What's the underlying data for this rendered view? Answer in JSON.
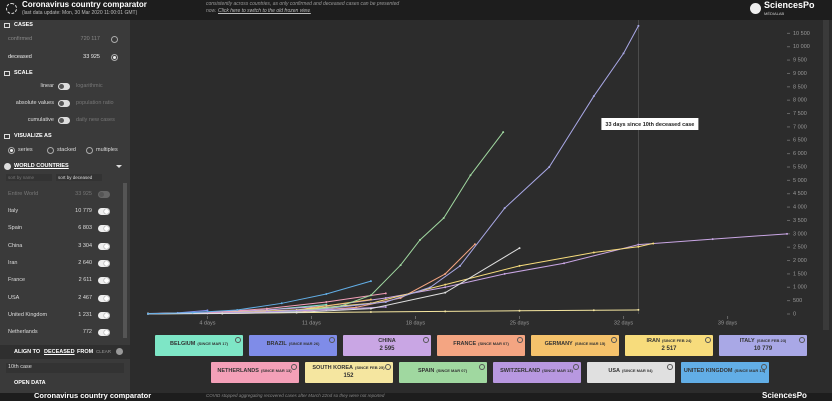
{
  "header": {
    "title": "Coronavirus country comparator",
    "subtitle": "(last data update: Mon, 30 Mar 2020 11:00:01 GMT)",
    "notice": "consistently across countries, as only confirmed and deceased cases can be presented",
    "notice_prefix": "now.",
    "notice_link": "Click here to switch to the old frozen view.",
    "logo": "SciencesPo",
    "logo_sub": "MÉDIALAB"
  },
  "sidebar": {
    "cases": {
      "title": "CASES",
      "selected": 1,
      "options": [
        {
          "label": "confirmed",
          "value": "720 117"
        },
        {
          "label": "deceased",
          "value": "33 925"
        }
      ]
    },
    "scale": {
      "title": "SCALE",
      "toggles": [
        {
          "on": "linear",
          "off": "logarithmic"
        },
        {
          "on": "absolute values",
          "off": "population ratio"
        },
        {
          "on": "cumulative",
          "off": "daily new cases"
        }
      ]
    },
    "visualize": {
      "title": "VISUALIZE AS",
      "selected": 0,
      "options": [
        "series",
        "stacked",
        "multiples"
      ]
    },
    "countries": {
      "title": "WORLD COUNTRIES",
      "sort": [
        "sort by name",
        "sort by deceased"
      ],
      "world": {
        "label": "Entire World",
        "value": "33 925"
      },
      "rows": [
        {
          "label": "Italy",
          "value": "10 779"
        },
        {
          "label": "Spain",
          "value": "6 803"
        },
        {
          "label": "China",
          "value": "3 304"
        },
        {
          "label": "Iran",
          "value": "2 640"
        },
        {
          "label": "France",
          "value": "2 611"
        },
        {
          "label": "USA",
          "value": "2 467"
        },
        {
          "label": "United Kingdom",
          "value": "1 231"
        },
        {
          "label": "Netherlands",
          "value": "772"
        }
      ]
    },
    "align": {
      "label": "ALIGN TO",
      "metric": "DECEASED",
      "from": "FROM",
      "clear": "CLEAR",
      "select": "10th case"
    },
    "open_data": "OPEN DATA"
  },
  "chart_data": {
    "type": "line",
    "xlim": [
      0,
      43
    ],
    "ylim": [
      0,
      11000
    ],
    "xticks": [
      {
        "value": 4,
        "label": "4 days"
      },
      {
        "value": 11,
        "label": "11 days"
      },
      {
        "value": 18,
        "label": "18 days"
      },
      {
        "value": 25,
        "label": "25 days"
      },
      {
        "value": 32,
        "label": "32 days"
      },
      {
        "value": 39,
        "label": "39 days"
      }
    ],
    "yticks": [
      0,
      500,
      {
        "value": 1000,
        "label": "1 000"
      },
      {
        "value": 1500,
        "label": "1 500"
      },
      {
        "value": 2000,
        "label": "2 000"
      },
      {
        "value": 2500,
        "label": "2 500"
      },
      {
        "value": 3000,
        "label": "3 000"
      },
      {
        "value": 3500,
        "label": "3 500"
      },
      {
        "value": 4000,
        "label": "4 000"
      },
      {
        "value": 4500,
        "label": "4 500"
      },
      {
        "value": 5000,
        "label": "5 000"
      },
      {
        "value": 5500,
        "label": "5 500"
      },
      {
        "value": 6000,
        "label": "6 000"
      },
      {
        "value": 6500,
        "label": "6 500"
      },
      {
        "value": 7000,
        "label": "7 000"
      },
      {
        "value": 7500,
        "label": "7 500"
      },
      {
        "value": 8000,
        "label": "8 000"
      },
      {
        "value": 8500,
        "label": "8 500"
      },
      {
        "value": 9000,
        "label": "9 000"
      },
      {
        "value": 9500,
        "label": "9 500"
      },
      {
        "value": 10000,
        "label": "10 000"
      },
      {
        "value": 10500,
        "label": "10 500"
      }
    ],
    "cursor_x": 33,
    "annotation": "33 days since 10th deceased case",
    "series": [
      {
        "name": "BELGIUM",
        "since": "(SINCE MAR 17)",
        "color": "#7ee6c6",
        "x": [
          0,
          4,
          8,
          12
        ],
        "values": [
          10,
          40,
          150,
          350
        ]
      },
      {
        "name": "BRAZIL",
        "since": "(SINCE MAR 26)",
        "color": "#7f8ce8",
        "x": [
          0,
          2,
          4
        ],
        "values": [
          10,
          40,
          136
        ]
      },
      {
        "name": "CHINA",
        "card_value": "2 595",
        "color": "#c9a6e4",
        "x": [
          0,
          4,
          8,
          12,
          16,
          20,
          24,
          28,
          33,
          38,
          43
        ],
        "values": [
          20,
          60,
          150,
          300,
          600,
          1000,
          1500,
          1900,
          2595,
          2800,
          3000
        ]
      },
      {
        "name": "FRANCE",
        "since": "(SINCE MAR 07)",
        "color": "#f4a582",
        "x": [
          0,
          5,
          10,
          14,
          17,
          20,
          22
        ],
        "values": [
          10,
          30,
          90,
          250,
          600,
          1500,
          2611
        ]
      },
      {
        "name": "GERMANY",
        "since": "(SINCE MAR 15)",
        "color": "#f5c26b",
        "x": [
          0,
          5,
          10,
          15
        ],
        "values": [
          10,
          40,
          150,
          541
        ]
      },
      {
        "name": "IRAN",
        "since": "(SINCE FEB 24)",
        "card_value": "2 517",
        "color": "#f7dc7c",
        "x": [
          0,
          5,
          10,
          15,
          20,
          25,
          30,
          33,
          34
        ],
        "values": [
          12,
          50,
          150,
          400,
          1100,
          1800,
          2300,
          2517,
          2640
        ]
      },
      {
        "name": "ITALY",
        "since": "(SINCE FEB 23)",
        "card_value": "10 779",
        "color": "#a9a8e6",
        "x": [
          0,
          4,
          8,
          12,
          16,
          19,
          21,
          24,
          27,
          30,
          32,
          33
        ],
        "values": [
          10,
          30,
          80,
          200,
          450,
          1000,
          1800,
          3960,
          5500,
          8150,
          9750,
          10779
        ]
      },
      {
        "name": "NETHERLANDS",
        "since": "(SINCE MAR 13)",
        "color": "#f4a0b8",
        "x": [
          0,
          4,
          8,
          12,
          16
        ],
        "values": [
          10,
          50,
          200,
          450,
          772
        ]
      },
      {
        "name": "SOUTH KOREA",
        "since": "(SINCE FEB 25)",
        "card_value": "152",
        "color": "#f5e6a0",
        "x": [
          0,
          5,
          10,
          15,
          20,
          25,
          30,
          33
        ],
        "values": [
          10,
          20,
          50,
          75,
          100,
          120,
          140,
          152
        ]
      },
      {
        "name": "SPAIN",
        "since": "(SINCE MAR 07)",
        "color": "#a0d8a0",
        "x": [
          0,
          5,
          10,
          13,
          15,
          17,
          18.3,
          19.9,
          21.7,
          23.9
        ],
        "values": [
          10,
          30,
          100,
          300,
          700,
          1830,
          2770,
          3590,
          5190,
          6803
        ]
      },
      {
        "name": "SWITZERLAND",
        "since": "(SINCE MAR 13)",
        "color": "#b898e0",
        "x": [
          0,
          4,
          8,
          12,
          16
        ],
        "values": [
          10,
          30,
          80,
          160,
          264
        ]
      },
      {
        "name": "USA",
        "since": "(SINCE MAR 04)",
        "color": "#e0e0e0",
        "x": [
          0,
          5,
          10,
          15,
          20,
          25
        ],
        "values": [
          10,
          20,
          60,
          200,
          800,
          2467
        ]
      },
      {
        "name": "UNITED KINGDOM",
        "since": "(SINCE MAR 14)",
        "color": "#62aee6",
        "x": [
          0,
          3,
          6,
          9,
          12,
          15
        ],
        "values": [
          10,
          50,
          150,
          400,
          750,
          1231
        ]
      }
    ]
  },
  "footer": {
    "title": "Coronavirus country comparator",
    "note": "COVID stopped aggregating recovered cases after March 22nd so they were not reported",
    "logo": "SciencesPo"
  }
}
